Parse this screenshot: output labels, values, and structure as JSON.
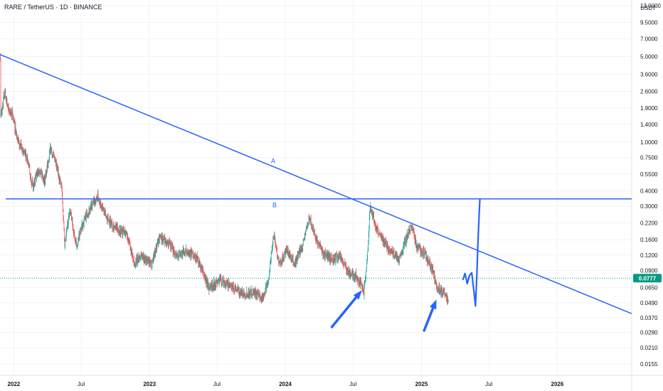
{
  "header": {
    "title": "RARE / TetherUS · 1D · BINANCE",
    "unit": "USDT"
  },
  "colors": {
    "up": "#26a69a",
    "down": "#ef5350",
    "drawing": "#2962ff",
    "current_price": "#089981"
  },
  "chart_data": {
    "type": "candlestick",
    "yscale": "log",
    "ylim": [
      0.0125,
      14.5
    ],
    "xlim": [
      "2021-11-25",
      "2026-07-20"
    ],
    "y_ticks": [
      {
        "label": "13.0000",
        "value": 13.0
      },
      {
        "label": "9.5000",
        "value": 9.5
      },
      {
        "label": "7.0000",
        "value": 7.0
      },
      {
        "label": "5.0000",
        "value": 5.0
      },
      {
        "label": "3.6000",
        "value": 3.6
      },
      {
        "label": "2.6000",
        "value": 2.6
      },
      {
        "label": "1.9000",
        "value": 1.9
      },
      {
        "label": "1.4000",
        "value": 1.4
      },
      {
        "label": "1.0000",
        "value": 1.0
      },
      {
        "label": "0.7500",
        "value": 0.75
      },
      {
        "label": "0.5500",
        "value": 0.55
      },
      {
        "label": "0.4000",
        "value": 0.4
      },
      {
        "label": "0.3000",
        "value": 0.3
      },
      {
        "label": "0.2200",
        "value": 0.22
      },
      {
        "label": "0.1600",
        "value": 0.16
      },
      {
        "label": "0.1200",
        "value": 0.12
      },
      {
        "label": "0.0900",
        "value": 0.09
      },
      {
        "label": "0.0650",
        "value": 0.065
      },
      {
        "label": "0.0490",
        "value": 0.049
      },
      {
        "label": "0.0370",
        "value": 0.037
      },
      {
        "label": "0.0280",
        "value": 0.028
      },
      {
        "label": "0.0210",
        "value": 0.021
      },
      {
        "label": "0.0155",
        "value": 0.0155
      }
    ],
    "x_ticks": [
      {
        "label": "2022",
        "date": "2022-01-01",
        "bold": true
      },
      {
        "label": "Jul",
        "date": "2022-07-01",
        "bold": false
      },
      {
        "label": "2023",
        "date": "2023-01-01",
        "bold": true
      },
      {
        "label": "Jul",
        "date": "2023-07-01",
        "bold": false
      },
      {
        "label": "2024",
        "date": "2024-01-01",
        "bold": true
      },
      {
        "label": "Jul",
        "date": "2024-07-01",
        "bold": false
      },
      {
        "label": "2025",
        "date": "2025-01-01",
        "bold": true
      },
      {
        "label": "Jul",
        "date": "2025-07-01",
        "bold": false
      },
      {
        "label": "2026",
        "date": "2026-01-01",
        "bold": true
      }
    ],
    "price_path": [
      [
        "2021-11-26",
        5.0
      ],
      [
        "2021-11-27",
        1.6
      ],
      [
        "2021-12-08",
        2.6
      ],
      [
        "2021-12-18",
        1.8
      ],
      [
        "2021-12-28",
        1.7
      ],
      [
        "2022-01-12",
        1.0
      ],
      [
        "2022-02-05",
        0.75
      ],
      [
        "2022-02-22",
        0.42
      ],
      [
        "2022-03-10",
        0.62
      ],
      [
        "2022-03-25",
        0.48
      ],
      [
        "2022-04-10",
        0.9
      ],
      [
        "2022-04-28",
        0.6
      ],
      [
        "2022-05-10",
        0.42
      ],
      [
        "2022-05-18",
        0.15
      ],
      [
        "2022-06-01",
        0.28
      ],
      [
        "2022-06-18",
        0.14
      ],
      [
        "2022-07-10",
        0.24
      ],
      [
        "2022-07-30",
        0.3
      ],
      [
        "2022-08-15",
        0.36
      ],
      [
        "2022-09-05",
        0.25
      ],
      [
        "2022-10-01",
        0.2
      ],
      [
        "2022-11-01",
        0.18
      ],
      [
        "2022-11-20",
        0.1
      ],
      [
        "2022-12-10",
        0.12
      ],
      [
        "2023-01-05",
        0.1
      ],
      [
        "2023-01-28",
        0.17
      ],
      [
        "2023-02-20",
        0.15
      ],
      [
        "2023-03-15",
        0.12
      ],
      [
        "2023-04-15",
        0.13
      ],
      [
        "2023-05-10",
        0.11
      ],
      [
        "2023-06-10",
        0.065
      ],
      [
        "2023-07-10",
        0.075
      ],
      [
        "2023-08-10",
        0.065
      ],
      [
        "2023-09-10",
        0.058
      ],
      [
        "2023-10-10",
        0.06
      ],
      [
        "2023-10-28",
        0.052
      ],
      [
        "2023-11-15",
        0.07
      ],
      [
        "2023-12-01",
        0.18
      ],
      [
        "2023-12-15",
        0.1
      ],
      [
        "2024-01-05",
        0.13
      ],
      [
        "2024-01-25",
        0.1
      ],
      [
        "2024-02-15",
        0.14
      ],
      [
        "2024-03-05",
        0.24
      ],
      [
        "2024-03-28",
        0.15
      ],
      [
        "2024-04-15",
        0.12
      ],
      [
        "2024-05-10",
        0.11
      ],
      [
        "2024-05-25",
        0.12
      ],
      [
        "2024-06-20",
        0.085
      ],
      [
        "2024-07-10",
        0.08
      ],
      [
        "2024-07-30",
        0.06
      ],
      [
        "2024-08-08",
        0.11
      ],
      [
        "2024-08-16",
        0.3
      ],
      [
        "2024-09-01",
        0.2
      ],
      [
        "2024-10-01",
        0.14
      ],
      [
        "2024-11-01",
        0.11
      ],
      [
        "2024-11-20",
        0.16
      ],
      [
        "2024-12-05",
        0.21
      ],
      [
        "2024-12-20",
        0.14
      ],
      [
        "2025-01-10",
        0.12
      ],
      [
        "2025-02-01",
        0.09
      ],
      [
        "2025-02-10",
        0.065
      ],
      [
        "2025-03-01",
        0.06
      ],
      [
        "2025-03-15",
        0.048
      ]
    ],
    "projection_path": [
      [
        "2025-04-22",
        0.075
      ],
      [
        "2025-04-28",
        0.085
      ],
      [
        "2025-05-04",
        0.07
      ],
      [
        "2025-05-10",
        0.082
      ],
      [
        "2025-05-16",
        0.086
      ],
      [
        "2025-05-22",
        0.06
      ],
      [
        "2025-05-26",
        0.046
      ],
      [
        "2025-05-30",
        0.085
      ],
      [
        "2025-06-02",
        0.16
      ],
      [
        "2025-06-05",
        0.26
      ],
      [
        "2025-06-07",
        0.345
      ]
    ],
    "trendline_a": {
      "label": "A",
      "from": [
        "2021-11-25",
        5.2
      ],
      "to": [
        "2025-07-01",
        0.12
      ],
      "extends_right": true
    },
    "hline_b": {
      "label": "B",
      "value": 0.345
    },
    "current_price": {
      "label": "0.0777",
      "value": 0.0777
    },
    "arrows": [
      {
        "from": [
          "2024-05-05",
          0.031
        ],
        "to": [
          "2024-07-25",
          0.062
        ]
      },
      {
        "from": [
          "2025-01-08",
          0.029
        ],
        "to": [
          "2025-02-10",
          0.052
        ]
      }
    ]
  }
}
